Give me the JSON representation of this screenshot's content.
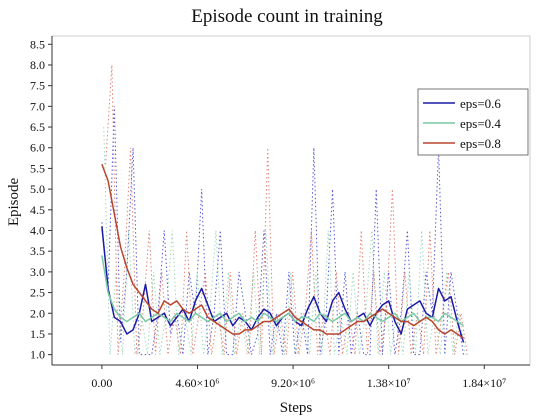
{
  "chart_data": {
    "type": "line",
    "title": "Episode count in training",
    "xlabel": "Steps",
    "ylabel": "Episode",
    "xlim": [
      -2400000,
      20600000
    ],
    "ylim": [
      0.75,
      8.7
    ],
    "xticks": [
      {
        "value": 0,
        "label": "0.00"
      },
      {
        "value": 4600000,
        "label": "4.60×10⁶"
      },
      {
        "value": 9200000,
        "label": "9.20×10⁶"
      },
      {
        "value": 13800000,
        "label": "1.38×10⁷"
      },
      {
        "value": 18400000,
        "label": "1.84×10⁷"
      }
    ],
    "yticks": [
      1.0,
      1.5,
      2.0,
      2.5,
      3.0,
      3.5,
      4.0,
      4.5,
      5.0,
      5.5,
      6.0,
      6.5,
      7.0,
      7.5,
      8.0,
      8.5
    ],
    "ytick_labels": [
      "1.0",
      "1.5",
      "2.0",
      "2.5",
      "3.0",
      "3.5",
      "4.0",
      "4.5",
      "5.0",
      "5.5",
      "6.0",
      "6.5",
      "7.0",
      "7.5",
      "8.0",
      "8.5"
    ],
    "grid": false,
    "legend_position": "upper-right",
    "series": [
      {
        "name": "eps=0.6",
        "color": "#1a1aa6",
        "raw_color": "#3a3ad0",
        "x": [
          0,
          300000,
          600000,
          900000,
          1200000,
          1500000,
          1800000,
          2100000,
          2400000,
          2700000,
          3000000,
          3300000,
          3600000,
          3900000,
          4200000,
          4500000,
          4800000,
          5100000,
          5400000,
          5700000,
          6000000,
          6300000,
          6600000,
          6900000,
          7200000,
          7500000,
          7800000,
          8100000,
          8400000,
          8700000,
          9000000,
          9300000,
          9600000,
          9900000,
          10200000,
          10500000,
          10800000,
          11100000,
          11400000,
          11700000,
          12000000,
          12300000,
          12600000,
          12900000,
          13200000,
          13500000,
          13800000,
          14100000,
          14400000,
          14700000,
          15000000,
          15300000,
          15600000,
          15900000,
          16200000,
          16500000,
          16800000,
          17100000,
          17400000
        ],
        "values": [
          4.1,
          2.6,
          1.9,
          1.8,
          1.5,
          1.6,
          2.0,
          2.7,
          1.8,
          1.9,
          2.0,
          1.7,
          1.9,
          2.1,
          1.8,
          2.3,
          2.6,
          2.2,
          1.8,
          1.9,
          2.0,
          1.7,
          1.9,
          1.8,
          1.6,
          1.9,
          2.1,
          2.0,
          1.7,
          1.9,
          2.0,
          1.8,
          1.7,
          2.1,
          2.4,
          2.0,
          1.8,
          2.3,
          2.5,
          2.1,
          1.8,
          1.9,
          2.0,
          1.7,
          2.0,
          2.2,
          2.3,
          1.8,
          1.5,
          2.1,
          2.2,
          2.3,
          2.0,
          1.9,
          2.6,
          2.3,
          2.4,
          1.8,
          1.3
        ],
        "raw": [
          4.2,
          2.6,
          7.0,
          1.3,
          3.0,
          6.0,
          1.0,
          1.0,
          1.0,
          2.0,
          4.0,
          1.5,
          2.0,
          1.0,
          3.0,
          2.0,
          5.0,
          1.0,
          2.0,
          4.0,
          1.0,
          1.0,
          3.0,
          2.0,
          1.0,
          1.5,
          4.0,
          1.0,
          2.0,
          1.0,
          3.0,
          1.0,
          2.0,
          1.0,
          6.0,
          1.0,
          2.0,
          5.0,
          1.0,
          3.0,
          1.0,
          2.0,
          1.0,
          1.0,
          5.0,
          1.0,
          3.0,
          1.0,
          2.0,
          4.0,
          1.0,
          1.0,
          3.0,
          2.0,
          6.0,
          1.0,
          3.0,
          2.0,
          1.0
        ]
      },
      {
        "name": "eps=0.4",
        "color": "#7ac9a4",
        "raw_color": "#8fd4b4",
        "x": [
          0,
          300000,
          600000,
          900000,
          1200000,
          1500000,
          1800000,
          2100000,
          2400000,
          2700000,
          3000000,
          3300000,
          3600000,
          3900000,
          4200000,
          4500000,
          4800000,
          5100000,
          5400000,
          5700000,
          6000000,
          6300000,
          6600000,
          6900000,
          7200000,
          7500000,
          7800000,
          8100000,
          8400000,
          8700000,
          9000000,
          9300000,
          9600000,
          9900000,
          10200000,
          10500000,
          10800000,
          11100000,
          11400000,
          11700000,
          12000000,
          12300000,
          12600000,
          12900000,
          13200000,
          13500000,
          13800000,
          14100000,
          14400000,
          14700000,
          15000000,
          15300000,
          15600000,
          15900000,
          16200000,
          16500000,
          16800000,
          17100000,
          17400000
        ],
        "values": [
          3.4,
          2.5,
          2.1,
          1.9,
          1.8,
          1.9,
          2.0,
          1.8,
          1.9,
          2.0,
          1.9,
          1.8,
          2.0,
          1.9,
          1.8,
          2.0,
          1.9,
          1.8,
          1.9,
          2.0,
          1.8,
          1.9,
          2.0,
          1.8,
          1.9,
          1.8,
          2.0,
          1.9,
          1.8,
          1.9,
          2.0,
          1.8,
          1.9,
          1.9,
          1.8,
          2.0,
          1.9,
          1.8,
          1.9,
          2.0,
          1.8,
          1.9,
          1.8,
          2.0,
          1.9,
          1.8,
          1.9,
          2.0,
          1.8,
          1.9,
          2.0,
          1.8,
          1.9,
          1.9,
          1.8,
          2.0,
          1.9,
          1.8,
          1.7
        ],
        "raw": [
          6.5,
          1.0,
          3.0,
          1.0,
          4.0,
          1.0,
          2.0,
          1.0,
          3.0,
          1.0,
          2.0,
          4.0,
          1.0,
          2.0,
          1.0,
          3.0,
          1.0,
          2.0,
          4.0,
          1.0,
          3.0,
          1.0,
          2.0,
          1.0,
          3.0,
          1.0,
          4.0,
          1.0,
          2.0,
          1.0,
          3.0,
          1.0,
          2.0,
          1.0,
          3.0,
          1.0,
          4.0,
          1.0,
          2.0,
          1.0,
          3.0,
          1.0,
          2.0,
          4.0,
          1.0,
          3.0,
          1.0,
          2.0,
          1.0,
          3.0,
          1.0,
          4.0,
          1.0,
          2.0,
          1.0,
          3.0,
          1.0,
          2.0,
          1.0
        ]
      },
      {
        "name": "eps=0.8",
        "color": "#b8452c",
        "raw_color": "#e07060",
        "x": [
          0,
          300000,
          600000,
          900000,
          1200000,
          1500000,
          1800000,
          2100000,
          2400000,
          2700000,
          3000000,
          3300000,
          3600000,
          3900000,
          4200000,
          4500000,
          4800000,
          5100000,
          5400000,
          5700000,
          6000000,
          6300000,
          6600000,
          6900000,
          7200000,
          7500000,
          7800000,
          8100000,
          8400000,
          8700000,
          9000000,
          9300000,
          9600000,
          9900000,
          10200000,
          10500000,
          10800000,
          11100000,
          11400000,
          11700000,
          12000000,
          12300000,
          12600000,
          12900000,
          13200000,
          13500000,
          13800000,
          14100000,
          14400000,
          14700000,
          15000000,
          15300000,
          15600000,
          15900000,
          16200000,
          16500000,
          16800000,
          17100000,
          17400000
        ],
        "values": [
          5.6,
          5.2,
          4.4,
          3.6,
          3.1,
          2.7,
          2.5,
          2.3,
          2.1,
          2.0,
          2.3,
          2.2,
          2.3,
          2.1,
          2.0,
          2.1,
          2.2,
          1.9,
          1.8,
          1.7,
          1.6,
          1.5,
          1.5,
          1.6,
          1.6,
          1.7,
          1.8,
          1.8,
          1.9,
          2.0,
          2.1,
          1.9,
          1.8,
          1.7,
          1.6,
          1.6,
          1.5,
          1.5,
          1.5,
          1.6,
          1.7,
          1.8,
          1.8,
          1.9,
          2.0,
          2.1,
          2.0,
          1.9,
          1.8,
          1.8,
          1.7,
          1.8,
          1.9,
          1.8,
          1.6,
          1.5,
          1.6,
          1.5,
          1.4
        ],
        "raw": [
          5.6,
          8.0,
          1.0,
          3.0,
          6.0,
          1.0,
          2.0,
          4.0,
          1.0,
          3.0,
          1.0,
          2.0,
          1.0,
          4.0,
          1.0,
          2.0,
          3.0,
          1.0,
          2.0,
          1.0,
          3.0,
          1.0,
          2.0,
          1.0,
          4.0,
          1.0,
          6.0,
          1.0,
          2.0,
          1.0,
          3.0,
          1.0,
          2.0,
          4.0,
          1.0,
          2.0,
          1.0,
          3.0,
          1.0,
          2.0,
          1.0,
          4.0,
          1.0,
          3.0,
          1.0,
          2.0,
          5.0,
          1.0,
          3.0,
          1.0,
          2.0,
          1.0,
          4.0,
          1.0,
          2.0,
          3.0,
          1.0,
          2.0,
          1.0
        ]
      }
    ]
  }
}
